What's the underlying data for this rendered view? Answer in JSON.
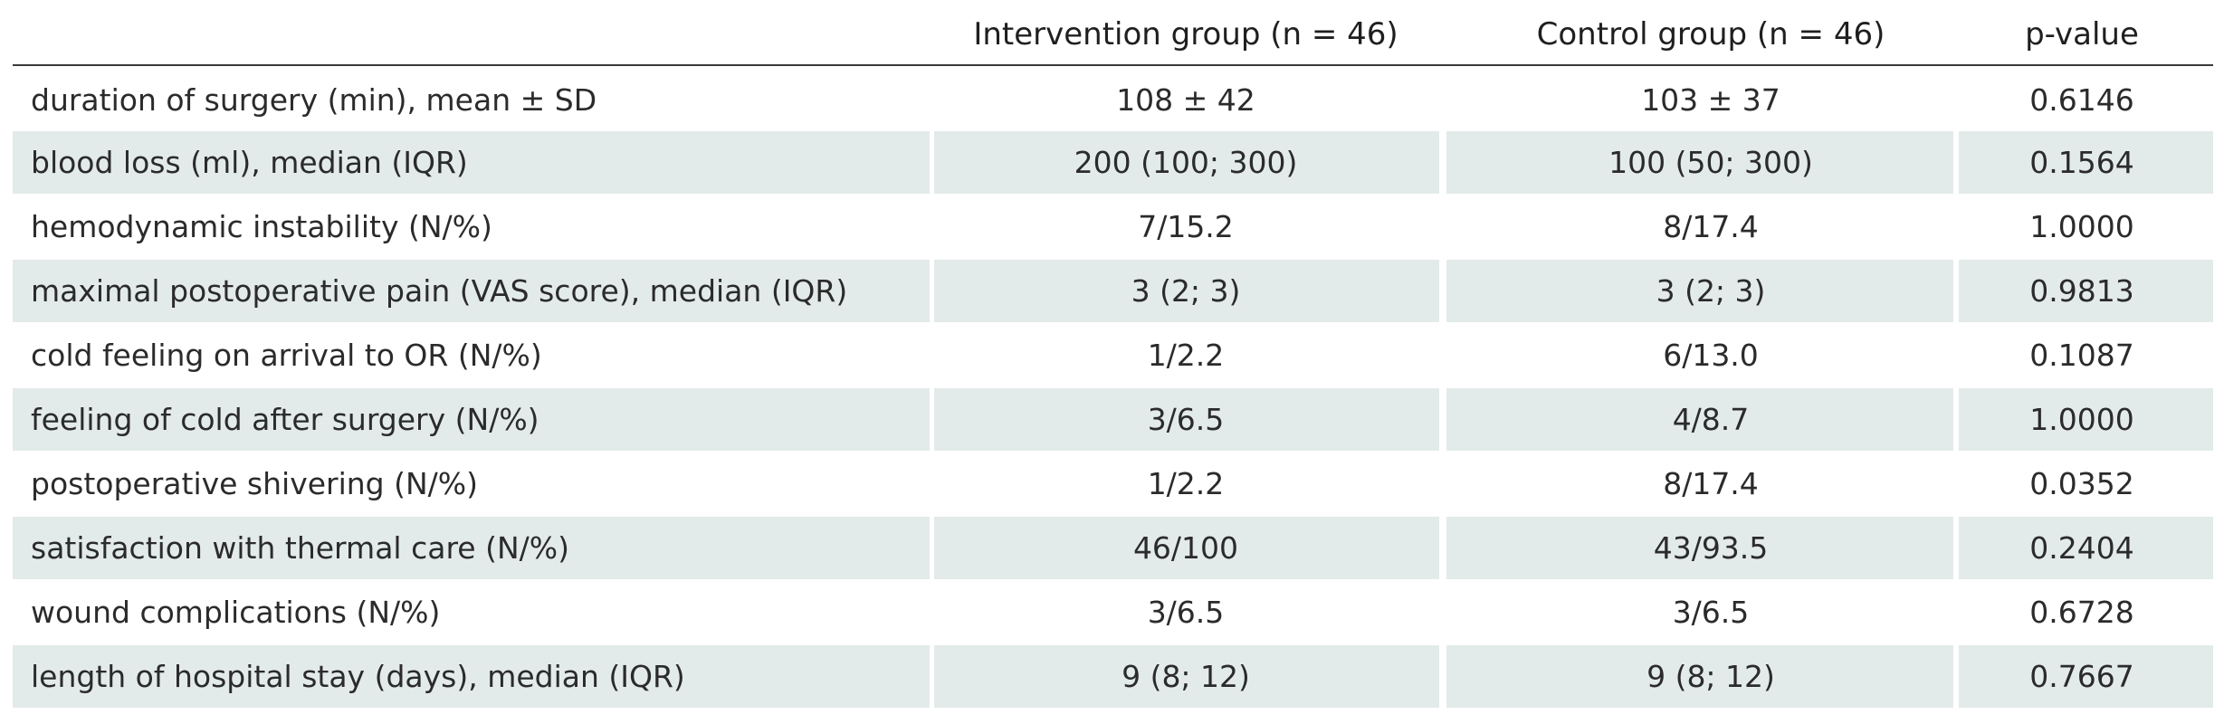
{
  "table": {
    "headers": [
      "",
      "Intervention group (n = 46)",
      "Control group (n = 46)",
      "p-value"
    ],
    "rows": [
      [
        "duration of surgery (min), mean ± SD",
        "108 ± 42",
        "103 ± 37",
        "0.6146"
      ],
      [
        "blood loss (ml), median (IQR)",
        "200 (100; 300)",
        "100 (50; 300)",
        "0.1564"
      ],
      [
        "hemodynamic instability (N/%)",
        "7/15.2",
        "8/17.4",
        "1.0000"
      ],
      [
        "maximal postoperative pain (VAS score), median (IQR)",
        "3 (2; 3)",
        "3 (2; 3)",
        "0.9813"
      ],
      [
        "cold feeling on arrival to OR (N/%)",
        "1/2.2",
        "6/13.0",
        "0.1087"
      ],
      [
        "feeling of cold after surgery (N/%)",
        "3/6.5",
        "4/8.7",
        "1.0000"
      ],
      [
        "postoperative shivering (N/%)",
        "1/2.2",
        "8/17.4",
        "0.0352"
      ],
      [
        "satisfaction with thermal care (N/%)",
        "46/100",
        "43/93.5",
        "0.2404"
      ],
      [
        "wound complications (N/%)",
        "3/6.5",
        "3/6.5",
        "0.6728"
      ],
      [
        "length of hospital stay (days), median (IQR)",
        "9 (8; 12)",
        "9 (8; 12)",
        "0.7667"
      ]
    ]
  },
  "colors": {
    "shaded_row": "#e3ebea",
    "text": "#2b2b2b",
    "rule": "#3a3a3a"
  }
}
